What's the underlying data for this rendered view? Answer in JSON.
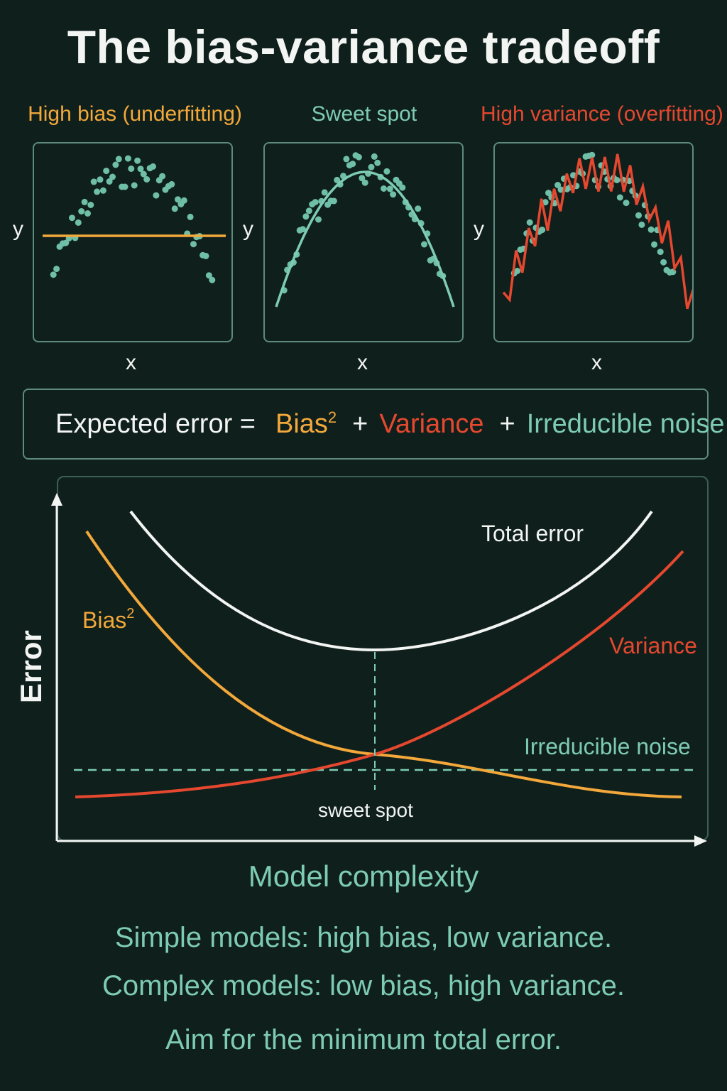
{
  "title": "The bias-variance tradeoff",
  "panels": [
    {
      "title": "High bias (underfitting)",
      "color": "#f2a83a",
      "ylabel": "y",
      "xlabel": "x",
      "fit": "flat line"
    },
    {
      "title": "Sweet spot",
      "color": "#7ecbb3",
      "ylabel": "y",
      "xlabel": "x",
      "fit": "smooth curve"
    },
    {
      "title": "High variance (overfitting)",
      "color": "#e5482f",
      "ylabel": "y",
      "xlabel": "x",
      "fit": "jagged curve"
    }
  ],
  "equation": {
    "lhs": "Expected error =",
    "bias": "Bias",
    "bias_sup": "2",
    "plus1": "+",
    "variance": "Variance",
    "plus2": "+",
    "noise": "Irreducible noise"
  },
  "chart": {
    "ylabel": "Error",
    "xlabel": "Model complexity",
    "labels": {
      "total": "Total error",
      "bias": "Bias",
      "bias_sup": "2",
      "variance": "Variance",
      "noise": "Irreducible noise",
      "sweet_spot": "sweet spot"
    },
    "colors": {
      "total": "#f3f5f3",
      "bias": "#f2a83a",
      "variance": "#e5482f",
      "noise": "#7ecbb3"
    }
  },
  "summary": {
    "line1": "Simple models: high bias, low variance.",
    "line2": "Complex models: low bias, high variance.",
    "line3": "Aim for the minimum total error."
  }
}
